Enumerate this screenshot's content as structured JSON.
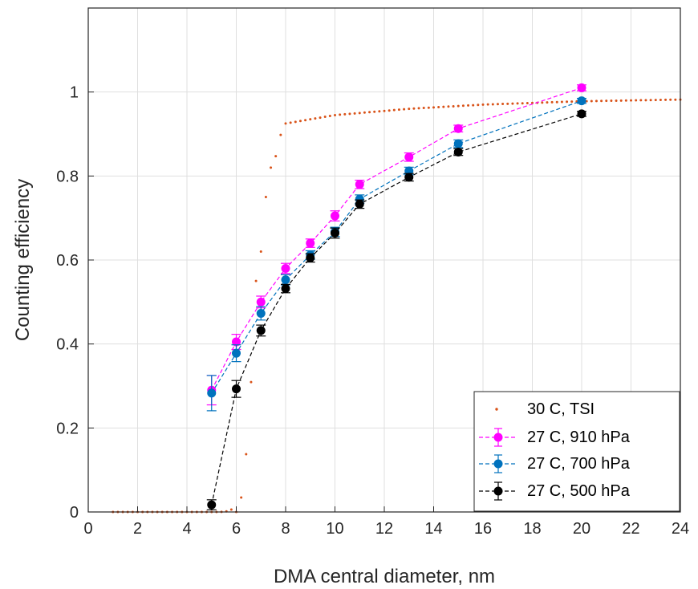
{
  "chart_data": {
    "type": "scatter",
    "xlabel": "DMA central diameter, nm",
    "ylabel": "Counting efficiency",
    "xlim": [
      0,
      24
    ],
    "ylim": [
      0,
      1.2
    ],
    "xticks": [
      "0",
      "2",
      "4",
      "6",
      "8",
      "10",
      "12",
      "14",
      "16",
      "18",
      "20",
      "22",
      "24"
    ],
    "yticks": [
      "0",
      "0.2",
      "0.4",
      "0.6",
      "0.8",
      "1"
    ],
    "ytick_values": [
      0,
      0.2,
      0.4,
      0.6,
      0.8,
      1.0
    ],
    "grid": true,
    "legend_position": "bottom-right",
    "colors": {
      "tsi": "#D95319",
      "p910": "#FF00FF",
      "p700": "#0072BD",
      "p500": "#000000",
      "grid": "#DFDFDF",
      "axis": "#262626"
    },
    "tsi_curve": {
      "name": "30 C, TSI",
      "x_start": 1.0,
      "x_end": 24.0,
      "x_step": 0.2,
      "d50": 6.45,
      "k": 7.0,
      "plateau": [
        [
          6.0,
          0.0
        ],
        [
          6.8,
          0.55
        ],
        [
          7.4,
          0.82
        ],
        [
          8.0,
          0.925
        ],
        [
          10.0,
          0.945
        ],
        [
          13.0,
          0.96
        ],
        [
          16.0,
          0.97
        ],
        [
          20.0,
          0.978
        ],
        [
          24.0,
          0.982
        ]
      ]
    },
    "series": [
      {
        "name": "27 C, 910 hPa",
        "color_key": "p910",
        "x": [
          5,
          6,
          7,
          8,
          9,
          10,
          11,
          13,
          15,
          20
        ],
        "y": [
          0.29,
          0.405,
          0.5,
          0.58,
          0.64,
          0.705,
          0.78,
          0.845,
          0.913,
          1.01
        ],
        "err": [
          0.035,
          0.018,
          0.014,
          0.012,
          0.01,
          0.012,
          0.01,
          0.01,
          0.008,
          0.007
        ]
      },
      {
        "name": "27 C, 700 hPa",
        "color_key": "p700",
        "x": [
          5,
          6,
          7,
          8,
          9,
          10,
          11,
          13,
          15,
          20
        ],
        "y": [
          0.283,
          0.378,
          0.473,
          0.553,
          0.612,
          0.667,
          0.745,
          0.812,
          0.877,
          0.979
        ],
        "err": [
          0.042,
          0.02,
          0.016,
          0.012,
          0.01,
          0.011,
          0.01,
          0.009,
          0.009,
          0.006
        ]
      },
      {
        "name": "27 C, 500 hPa",
        "color_key": "p500",
        "x": [
          5,
          6,
          7,
          8,
          9,
          10,
          11,
          13,
          15,
          20
        ],
        "y": [
          0.017,
          0.293,
          0.432,
          0.532,
          0.605,
          0.664,
          0.733,
          0.797,
          0.857,
          0.948
        ],
        "err": [
          0.012,
          0.02,
          0.013,
          0.01,
          0.01,
          0.012,
          0.01,
          0.009,
          0.008,
          0.006
        ]
      }
    ]
  }
}
